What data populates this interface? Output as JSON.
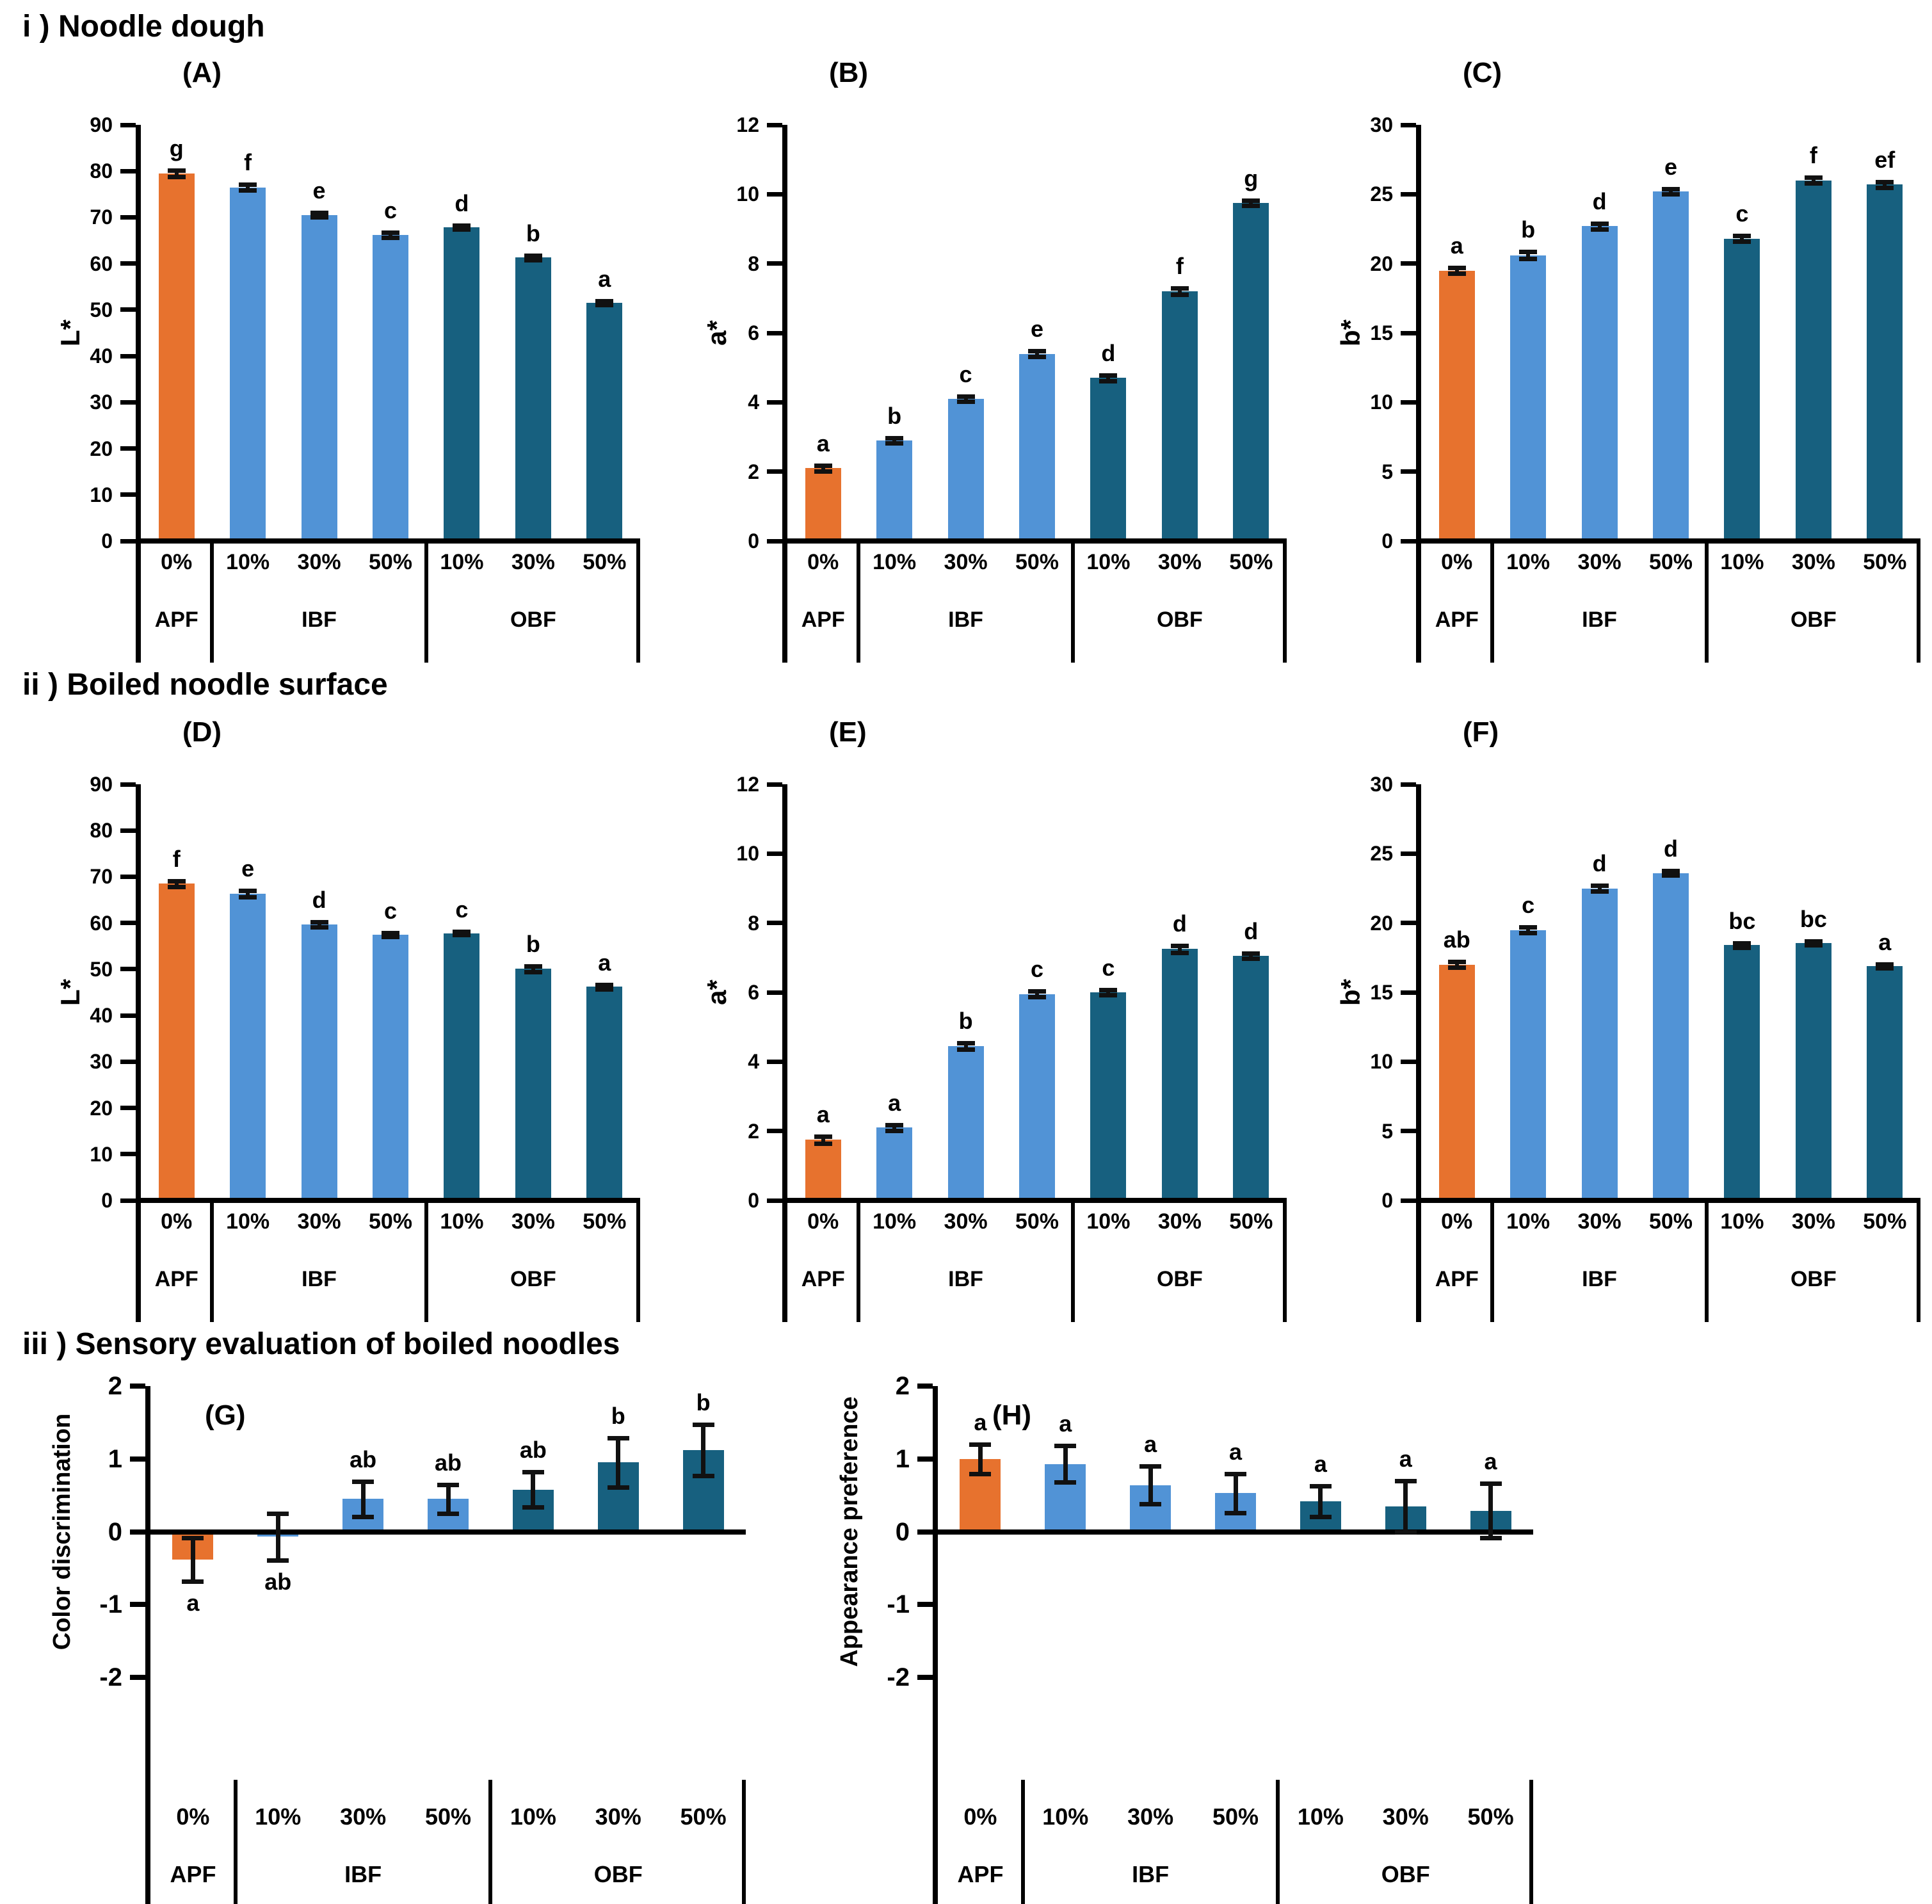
{
  "figure": {
    "sections": [
      {
        "title": "i ) Noodle dough"
      },
      {
        "title": "ii ) Boiled noodle surface"
      },
      {
        "title": "iii ) Sensory evaluation of boiled noodles"
      }
    ]
  },
  "colors": {
    "apf_orange": "#E7722E",
    "ibf_blue": "#5193D6",
    "obf_teal": "#17607F",
    "axis_black": "#000000",
    "error_bar": "#111111",
    "background": "#FFFFFF"
  },
  "x_axis": {
    "categories": [
      "0%",
      "10%",
      "30%",
      "50%",
      "10%",
      "30%",
      "50%"
    ],
    "groups": [
      {
        "label": "APF",
        "span": 1
      },
      {
        "label": "IBF",
        "span": 3
      },
      {
        "label": "OBF",
        "span": 3
      }
    ]
  },
  "chart_data": [
    {
      "type": "bar",
      "panel": "(A)",
      "section": 0,
      "ylabel": "L*",
      "ylim": [
        0,
        90
      ],
      "ystep": 10,
      "yticks": [
        "0",
        "10",
        "20",
        "30",
        "40",
        "50",
        "60",
        "70",
        "80",
        "90"
      ],
      "categories": [
        "0%",
        "10%",
        "30%",
        "50%",
        "10%",
        "30%",
        "50%"
      ],
      "values": [
        79.5,
        76.5,
        70.5,
        66.2,
        67.8,
        61.3,
        51.5
      ],
      "errors": [
        0.7,
        0.6,
        0.5,
        0.5,
        0.4,
        0.5,
        0.4
      ],
      "letters": [
        "g",
        "f",
        "e",
        "c",
        "d",
        "b",
        "a"
      ],
      "letters_below": [
        false,
        false,
        false,
        false,
        false,
        false,
        false
      ],
      "grid": false,
      "legend": "none"
    },
    {
      "type": "bar",
      "panel": "(B)",
      "section": 0,
      "ylabel": "a*",
      "ylim": [
        0,
        12
      ],
      "ystep": 2,
      "yticks": [
        "0",
        "2",
        "4",
        "6",
        "8",
        "10",
        "12"
      ],
      "categories": [
        "0%",
        "10%",
        "30%",
        "50%",
        "10%",
        "30%",
        "50%"
      ],
      "values": [
        2.1,
        2.9,
        4.1,
        5.4,
        4.7,
        7.2,
        9.75
      ],
      "errors": [
        0.08,
        0.07,
        0.08,
        0.08,
        0.08,
        0.1,
        0.08
      ],
      "letters": [
        "a",
        "b",
        "c",
        "e",
        "d",
        "f",
        "g"
      ],
      "letters_below": [
        false,
        false,
        false,
        false,
        false,
        false,
        false
      ],
      "grid": false,
      "legend": "none"
    },
    {
      "type": "bar",
      "panel": "(C)",
      "section": 0,
      "ylabel": "b*",
      "ylim": [
        0,
        30
      ],
      "ystep": 5,
      "yticks": [
        "0",
        "5",
        "10",
        "15",
        "20",
        "25",
        "30"
      ],
      "categories": [
        "0%",
        "10%",
        "30%",
        "50%",
        "10%",
        "30%",
        "50%"
      ],
      "values": [
        19.5,
        20.6,
        22.7,
        25.2,
        21.8,
        26.0,
        25.7
      ],
      "errors": [
        0.2,
        0.25,
        0.2,
        0.2,
        0.2,
        0.2,
        0.2
      ],
      "letters": [
        "a",
        "b",
        "d",
        "e",
        "c",
        "f",
        "ef"
      ],
      "letters_below": [
        false,
        false,
        false,
        false,
        false,
        false,
        false
      ],
      "grid": false,
      "legend": "none"
    },
    {
      "type": "bar",
      "panel": "(D)",
      "section": 1,
      "ylabel": "L*",
      "ylim": [
        0,
        90
      ],
      "ystep": 10,
      "yticks": [
        "0",
        "10",
        "20",
        "30",
        "40",
        "50",
        "60",
        "70",
        "80",
        "90"
      ],
      "categories": [
        "0%",
        "10%",
        "30%",
        "50%",
        "10%",
        "30%",
        "50%"
      ],
      "values": [
        68.5,
        66.3,
        59.7,
        57.5,
        57.8,
        50.1,
        46.2
      ],
      "errors": [
        0.6,
        0.7,
        0.6,
        0.4,
        0.4,
        0.6,
        0.5
      ],
      "letters": [
        "f",
        "e",
        "d",
        "c",
        "c",
        "b",
        "a"
      ],
      "letters_below": [
        false,
        false,
        false,
        false,
        false,
        false,
        false
      ],
      "grid": false,
      "legend": "none"
    },
    {
      "type": "bar",
      "panel": "(E)",
      "section": 1,
      "ylabel": "a*",
      "ylim": [
        0,
        12
      ],
      "ystep": 2,
      "yticks": [
        "0",
        "2",
        "4",
        "6",
        "8",
        "10",
        "12"
      ],
      "categories": [
        "0%",
        "10%",
        "30%",
        "50%",
        "10%",
        "30%",
        "50%"
      ],
      "values": [
        1.75,
        2.1,
        4.45,
        5.95,
        6.0,
        7.25,
        7.05
      ],
      "errors": [
        0.1,
        0.08,
        0.1,
        0.08,
        0.08,
        0.1,
        0.08
      ],
      "letters": [
        "a",
        "a",
        "b",
        "c",
        "c",
        "d",
        "d"
      ],
      "letters_below": [
        false,
        false,
        false,
        false,
        false,
        false,
        false
      ],
      "grid": false,
      "legend": "none"
    },
    {
      "type": "bar",
      "panel": "(F)",
      "section": 1,
      "ylabel": "b*",
      "ylim": [
        0,
        30
      ],
      "ystep": 5,
      "yticks": [
        "0",
        "5",
        "10",
        "15",
        "20",
        "25",
        "30"
      ],
      "categories": [
        "0%",
        "10%",
        "30%",
        "50%",
        "10%",
        "30%",
        "50%"
      ],
      "values": [
        17.0,
        19.5,
        22.5,
        23.6,
        18.4,
        18.55,
        16.9
      ],
      "errors": [
        0.2,
        0.2,
        0.2,
        0.15,
        0.15,
        0.15,
        0.15
      ],
      "letters": [
        "ab",
        "c",
        "d",
        "d",
        "bc",
        "bc",
        "a"
      ],
      "letters_below": [
        false,
        false,
        false,
        false,
        false,
        false,
        false
      ],
      "grid": false,
      "legend": "none"
    },
    {
      "type": "bar",
      "panel": "(G)",
      "section": 2,
      "ylabel": "Color discrimination",
      "ylim": [
        -2,
        2
      ],
      "ystep": 1,
      "yticks": [
        "-2",
        "-1",
        "0",
        "1",
        "2"
      ],
      "categories": [
        "0%",
        "10%",
        "30%",
        "50%",
        "10%",
        "30%",
        "50%"
      ],
      "values": [
        -0.38,
        -0.07,
        0.45,
        0.45,
        0.58,
        0.95,
        1.12
      ],
      "errors": [
        0.3,
        0.32,
        0.24,
        0.2,
        0.24,
        0.34,
        0.35
      ],
      "letters": [
        "a",
        "ab",
        "ab",
        "ab",
        "ab",
        "b",
        "b"
      ],
      "letters_below": [
        true,
        true,
        false,
        false,
        false,
        false,
        false
      ],
      "grid": false,
      "legend": "none"
    },
    {
      "type": "bar",
      "panel": "(H)",
      "section": 2,
      "ylabel": "Appearance preference",
      "ylim": [
        -2,
        2
      ],
      "ystep": 1,
      "yticks": [
        "-2",
        "-1",
        "0",
        "1",
        "2"
      ],
      "categories": [
        "0%",
        "10%",
        "30%",
        "50%",
        "10%",
        "30%",
        "50%"
      ],
      "values": [
        1.0,
        0.93,
        0.64,
        0.53,
        0.42,
        0.35,
        0.29
      ],
      "errors": [
        0.2,
        0.25,
        0.26,
        0.27,
        0.21,
        0.35,
        0.37
      ],
      "letters": [
        "a",
        "a",
        "a",
        "a",
        "a",
        "a",
        "a"
      ],
      "letters_below": [
        false,
        false,
        false,
        false,
        false,
        false,
        false
      ],
      "grid": false,
      "legend": "none"
    }
  ]
}
